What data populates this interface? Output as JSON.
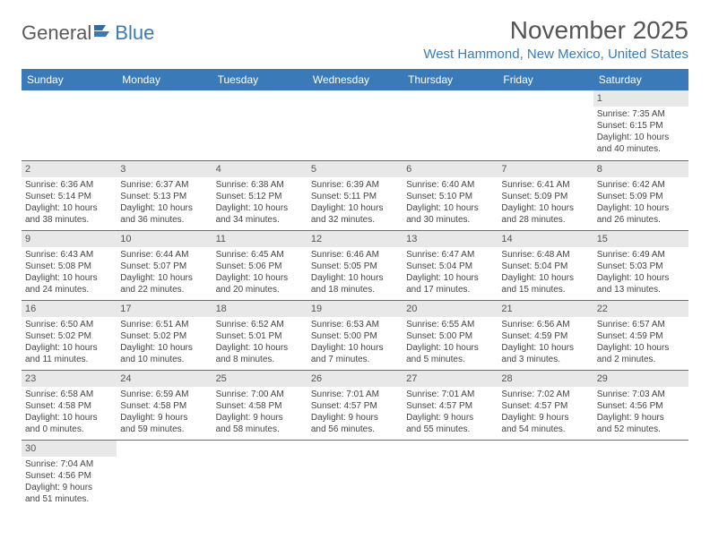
{
  "brand": {
    "part1": "General",
    "part2": "Blue"
  },
  "title": "November 2025",
  "location": "West Hammond, New Mexico, United States",
  "day_headers": [
    "Sunday",
    "Monday",
    "Tuesday",
    "Wednesday",
    "Thursday",
    "Friday",
    "Saturday"
  ],
  "colors": {
    "header_bg": "#3a7ab8",
    "header_text": "#ffffff",
    "daybar_bg": "#e8e8e8",
    "rule": "#3a7ab8",
    "title_color": "#555555",
    "location_color": "#3a7ab8"
  },
  "weeks": [
    [
      null,
      null,
      null,
      null,
      null,
      null,
      {
        "n": "1",
        "sr": "Sunrise: 7:35 AM",
        "ss": "Sunset: 6:15 PM",
        "d1": "Daylight: 10 hours",
        "d2": "and 40 minutes."
      }
    ],
    [
      {
        "n": "2",
        "sr": "Sunrise: 6:36 AM",
        "ss": "Sunset: 5:14 PM",
        "d1": "Daylight: 10 hours",
        "d2": "and 38 minutes."
      },
      {
        "n": "3",
        "sr": "Sunrise: 6:37 AM",
        "ss": "Sunset: 5:13 PM",
        "d1": "Daylight: 10 hours",
        "d2": "and 36 minutes."
      },
      {
        "n": "4",
        "sr": "Sunrise: 6:38 AM",
        "ss": "Sunset: 5:12 PM",
        "d1": "Daylight: 10 hours",
        "d2": "and 34 minutes."
      },
      {
        "n": "5",
        "sr": "Sunrise: 6:39 AM",
        "ss": "Sunset: 5:11 PM",
        "d1": "Daylight: 10 hours",
        "d2": "and 32 minutes."
      },
      {
        "n": "6",
        "sr": "Sunrise: 6:40 AM",
        "ss": "Sunset: 5:10 PM",
        "d1": "Daylight: 10 hours",
        "d2": "and 30 minutes."
      },
      {
        "n": "7",
        "sr": "Sunrise: 6:41 AM",
        "ss": "Sunset: 5:09 PM",
        "d1": "Daylight: 10 hours",
        "d2": "and 28 minutes."
      },
      {
        "n": "8",
        "sr": "Sunrise: 6:42 AM",
        "ss": "Sunset: 5:09 PM",
        "d1": "Daylight: 10 hours",
        "d2": "and 26 minutes."
      }
    ],
    [
      {
        "n": "9",
        "sr": "Sunrise: 6:43 AM",
        "ss": "Sunset: 5:08 PM",
        "d1": "Daylight: 10 hours",
        "d2": "and 24 minutes."
      },
      {
        "n": "10",
        "sr": "Sunrise: 6:44 AM",
        "ss": "Sunset: 5:07 PM",
        "d1": "Daylight: 10 hours",
        "d2": "and 22 minutes."
      },
      {
        "n": "11",
        "sr": "Sunrise: 6:45 AM",
        "ss": "Sunset: 5:06 PM",
        "d1": "Daylight: 10 hours",
        "d2": "and 20 minutes."
      },
      {
        "n": "12",
        "sr": "Sunrise: 6:46 AM",
        "ss": "Sunset: 5:05 PM",
        "d1": "Daylight: 10 hours",
        "d2": "and 18 minutes."
      },
      {
        "n": "13",
        "sr": "Sunrise: 6:47 AM",
        "ss": "Sunset: 5:04 PM",
        "d1": "Daylight: 10 hours",
        "d2": "and 17 minutes."
      },
      {
        "n": "14",
        "sr": "Sunrise: 6:48 AM",
        "ss": "Sunset: 5:04 PM",
        "d1": "Daylight: 10 hours",
        "d2": "and 15 minutes."
      },
      {
        "n": "15",
        "sr": "Sunrise: 6:49 AM",
        "ss": "Sunset: 5:03 PM",
        "d1": "Daylight: 10 hours",
        "d2": "and 13 minutes."
      }
    ],
    [
      {
        "n": "16",
        "sr": "Sunrise: 6:50 AM",
        "ss": "Sunset: 5:02 PM",
        "d1": "Daylight: 10 hours",
        "d2": "and 11 minutes."
      },
      {
        "n": "17",
        "sr": "Sunrise: 6:51 AM",
        "ss": "Sunset: 5:02 PM",
        "d1": "Daylight: 10 hours",
        "d2": "and 10 minutes."
      },
      {
        "n": "18",
        "sr": "Sunrise: 6:52 AM",
        "ss": "Sunset: 5:01 PM",
        "d1": "Daylight: 10 hours",
        "d2": "and 8 minutes."
      },
      {
        "n": "19",
        "sr": "Sunrise: 6:53 AM",
        "ss": "Sunset: 5:00 PM",
        "d1": "Daylight: 10 hours",
        "d2": "and 7 minutes."
      },
      {
        "n": "20",
        "sr": "Sunrise: 6:55 AM",
        "ss": "Sunset: 5:00 PM",
        "d1": "Daylight: 10 hours",
        "d2": "and 5 minutes."
      },
      {
        "n": "21",
        "sr": "Sunrise: 6:56 AM",
        "ss": "Sunset: 4:59 PM",
        "d1": "Daylight: 10 hours",
        "d2": "and 3 minutes."
      },
      {
        "n": "22",
        "sr": "Sunrise: 6:57 AM",
        "ss": "Sunset: 4:59 PM",
        "d1": "Daylight: 10 hours",
        "d2": "and 2 minutes."
      }
    ],
    [
      {
        "n": "23",
        "sr": "Sunrise: 6:58 AM",
        "ss": "Sunset: 4:58 PM",
        "d1": "Daylight: 10 hours",
        "d2": "and 0 minutes."
      },
      {
        "n": "24",
        "sr": "Sunrise: 6:59 AM",
        "ss": "Sunset: 4:58 PM",
        "d1": "Daylight: 9 hours",
        "d2": "and 59 minutes."
      },
      {
        "n": "25",
        "sr": "Sunrise: 7:00 AM",
        "ss": "Sunset: 4:58 PM",
        "d1": "Daylight: 9 hours",
        "d2": "and 58 minutes."
      },
      {
        "n": "26",
        "sr": "Sunrise: 7:01 AM",
        "ss": "Sunset: 4:57 PM",
        "d1": "Daylight: 9 hours",
        "d2": "and 56 minutes."
      },
      {
        "n": "27",
        "sr": "Sunrise: 7:01 AM",
        "ss": "Sunset: 4:57 PM",
        "d1": "Daylight: 9 hours",
        "d2": "and 55 minutes."
      },
      {
        "n": "28",
        "sr": "Sunrise: 7:02 AM",
        "ss": "Sunset: 4:57 PM",
        "d1": "Daylight: 9 hours",
        "d2": "and 54 minutes."
      },
      {
        "n": "29",
        "sr": "Sunrise: 7:03 AM",
        "ss": "Sunset: 4:56 PM",
        "d1": "Daylight: 9 hours",
        "d2": "and 52 minutes."
      }
    ],
    [
      {
        "n": "30",
        "sr": "Sunrise: 7:04 AM",
        "ss": "Sunset: 4:56 PM",
        "d1": "Daylight: 9 hours",
        "d2": "and 51 minutes."
      },
      null,
      null,
      null,
      null,
      null,
      null
    ]
  ]
}
